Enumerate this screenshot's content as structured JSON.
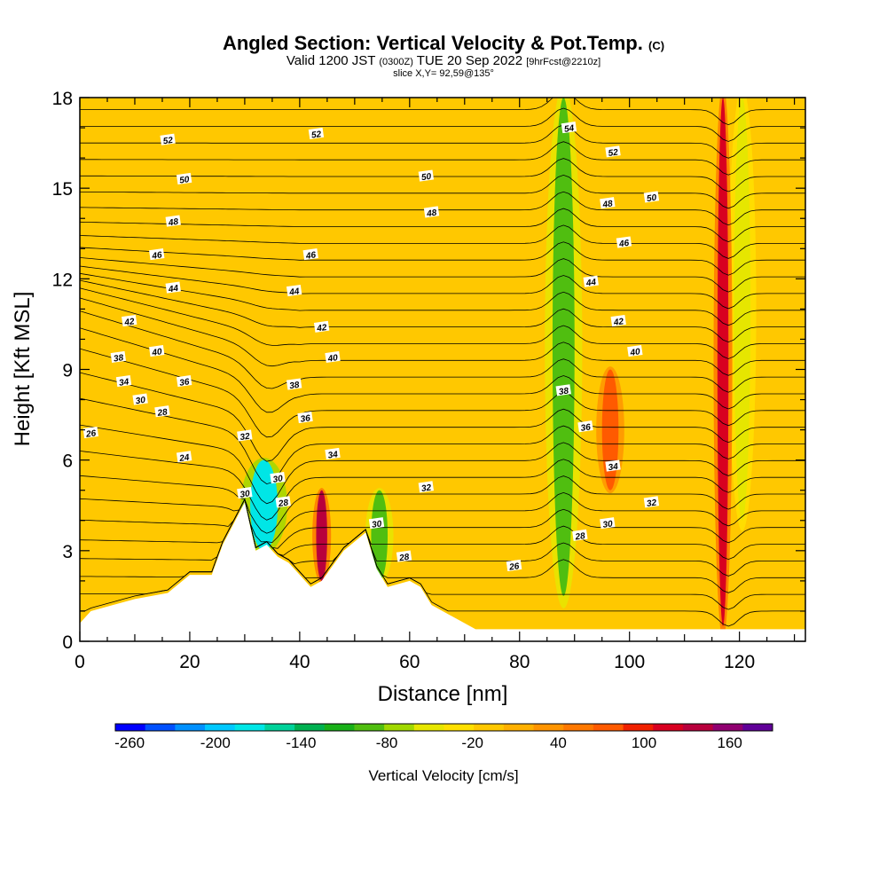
{
  "header": {
    "title": "Angled Section: Vertical Velocity & Pot.Temp.",
    "title_tag": "(C)",
    "valid_prefix": "Valid 1200 JST",
    "valid_zulu": "(0300Z)",
    "valid_date": "TUE 20 Sep 2022",
    "valid_fcst": "[9hrFcst@2210z]",
    "slice": "slice X,Y= 92,59@135°"
  },
  "chart_data": {
    "type": "heatmap",
    "xlabel": "Distance [nm]",
    "ylabel": "Height [Kft MSL]",
    "xlim": [
      0,
      132
    ],
    "ylim": [
      0,
      18
    ],
    "x_ticks": [
      0,
      20,
      40,
      60,
      80,
      100,
      120
    ],
    "y_ticks": [
      0,
      3,
      6,
      9,
      12,
      15,
      18
    ],
    "terrain": [
      [
        0,
        0.6
      ],
      [
        2,
        1.0
      ],
      [
        6,
        1.2
      ],
      [
        10,
        1.4
      ],
      [
        16,
        1.6
      ],
      [
        20,
        2.2
      ],
      [
        24,
        2.2
      ],
      [
        26,
        3.2
      ],
      [
        30,
        4.6
      ],
      [
        32,
        3.0
      ],
      [
        34,
        3.2
      ],
      [
        36,
        2.8
      ],
      [
        38,
        2.6
      ],
      [
        42,
        1.8
      ],
      [
        44,
        2.0
      ],
      [
        48,
        3.0
      ],
      [
        52,
        3.6
      ],
      [
        54,
        2.4
      ],
      [
        56,
        1.8
      ],
      [
        60,
        2.0
      ],
      [
        62,
        1.8
      ],
      [
        64,
        1.2
      ],
      [
        68,
        0.8
      ],
      [
        72,
        0.4
      ],
      [
        110,
        0.4
      ],
      [
        132,
        0.4
      ]
    ],
    "shading": {
      "colorbar_title": "Vertical Velocity [cm/s]",
      "colorbar_ticks": [
        "-260",
        "-200",
        "-140",
        "-80",
        "-20",
        "40",
        "100",
        "160"
      ],
      "colorbar_range": [
        -270,
        190
      ],
      "colorbar_colors": [
        "#0000ff",
        "#0050ff",
        "#0090ff",
        "#00c8ff",
        "#00e6e6",
        "#00d29a",
        "#00b050",
        "#18b018",
        "#50be10",
        "#a0d800",
        "#e6e600",
        "#ffe000",
        "#ffc800",
        "#ffb000",
        "#ff9400",
        "#ff7800",
        "#ff5a00",
        "#f02000",
        "#d80020",
        "#b8003c",
        "#900070",
        "#600098"
      ],
      "background_value": 0,
      "updraft_bands": [
        {
          "x": [
            86,
            90
          ],
          "z": [
            1.5,
            18
          ],
          "value": -100
        },
        {
          "x": [
            119,
            122
          ],
          "z": [
            4,
            18
          ],
          "value": -60
        }
      ],
      "downdraft_bands": [
        {
          "x": [
            95,
            98
          ],
          "z": [
            5,
            9
          ],
          "value": 80
        },
        {
          "x": [
            116,
            118
          ],
          "z": [
            0.5,
            18
          ],
          "value": 120
        }
      ],
      "terrain_wave_features": [
        {
          "x": [
            31,
            36
          ],
          "z": [
            3,
            6
          ],
          "value": -180
        },
        {
          "x": [
            43,
            45
          ],
          "z": [
            2,
            5
          ],
          "value": 140
        },
        {
          "x": [
            53,
            56
          ],
          "z": [
            2,
            5
          ],
          "value": -100
        }
      ]
    },
    "contours": {
      "field": "Potential Temperature (C)",
      "levels": [
        24,
        25,
        26,
        27,
        28,
        29,
        30,
        31,
        32,
        33,
        34,
        35,
        36,
        37,
        38,
        39,
        40,
        41,
        42,
        43,
        44,
        45,
        46,
        47,
        48,
        49,
        50,
        51,
        52,
        53,
        54
      ],
      "labels": [
        {
          "text": "52",
          "x": 16,
          "z": 16.6
        },
        {
          "text": "52",
          "x": 43,
          "z": 16.8
        },
        {
          "text": "50",
          "x": 19,
          "z": 15.3
        },
        {
          "text": "50",
          "x": 63,
          "z": 15.4
        },
        {
          "text": "48",
          "x": 17,
          "z": 13.9
        },
        {
          "text": "48",
          "x": 64,
          "z": 14.2
        },
        {
          "text": "46",
          "x": 14,
          "z": 12.8
        },
        {
          "text": "46",
          "x": 42,
          "z": 12.8
        },
        {
          "text": "44",
          "x": 17,
          "z": 11.7
        },
        {
          "text": "44",
          "x": 39,
          "z": 11.6
        },
        {
          "text": "42",
          "x": 9,
          "z": 10.6
        },
        {
          "text": "42",
          "x": 44,
          "z": 10.4
        },
        {
          "text": "40",
          "x": 14,
          "z": 9.6
        },
        {
          "text": "40",
          "x": 46,
          "z": 9.4
        },
        {
          "text": "38",
          "x": 7,
          "z": 9.4
        },
        {
          "text": "38",
          "x": 39,
          "z": 8.5
        },
        {
          "text": "36",
          "x": 19,
          "z": 8.6
        },
        {
          "text": "36",
          "x": 41,
          "z": 7.4
        },
        {
          "text": "34",
          "x": 8,
          "z": 8.6
        },
        {
          "text": "34",
          "x": 46,
          "z": 6.2
        },
        {
          "text": "30",
          "x": 11,
          "z": 8.0
        },
        {
          "text": "28",
          "x": 15,
          "z": 7.6
        },
        {
          "text": "26",
          "x": 2,
          "z": 6.9
        },
        {
          "text": "24",
          "x": 19,
          "z": 6.1
        },
        {
          "text": "32",
          "x": 30,
          "z": 6.8
        },
        {
          "text": "30",
          "x": 30,
          "z": 4.9
        },
        {
          "text": "30",
          "x": 36,
          "z": 5.4
        },
        {
          "text": "28",
          "x": 37,
          "z": 4.6
        },
        {
          "text": "32",
          "x": 63,
          "z": 5.1
        },
        {
          "text": "30",
          "x": 54,
          "z": 3.9
        },
        {
          "text": "28",
          "x": 59,
          "z": 2.8
        },
        {
          "text": "26",
          "x": 79,
          "z": 2.5
        },
        {
          "text": "54",
          "x": 89,
          "z": 17.0
        },
        {
          "text": "52",
          "x": 97,
          "z": 16.2
        },
        {
          "text": "50",
          "x": 104,
          "z": 14.7
        },
        {
          "text": "48",
          "x": 96,
          "z": 14.5
        },
        {
          "text": "46",
          "x": 99,
          "z": 13.2
        },
        {
          "text": "44",
          "x": 93,
          "z": 11.9
        },
        {
          "text": "42",
          "x": 98,
          "z": 10.6
        },
        {
          "text": "40",
          "x": 101,
          "z": 9.6
        },
        {
          "text": "38",
          "x": 88,
          "z": 8.3
        },
        {
          "text": "36",
          "x": 92,
          "z": 7.1
        },
        {
          "text": "34",
          "x": 97,
          "z": 5.8
        },
        {
          "text": "32",
          "x": 104,
          "z": 4.6
        },
        {
          "text": "30",
          "x": 96,
          "z": 3.9
        },
        {
          "text": "28",
          "x": 91,
          "z": 3.5
        },
        {
          "text": "26",
          "x": 79,
          "z": 2.5
        }
      ]
    }
  },
  "colors": {
    "background_field": "#ffc800",
    "terrain": "#ffffff",
    "contour": "#000000"
  }
}
